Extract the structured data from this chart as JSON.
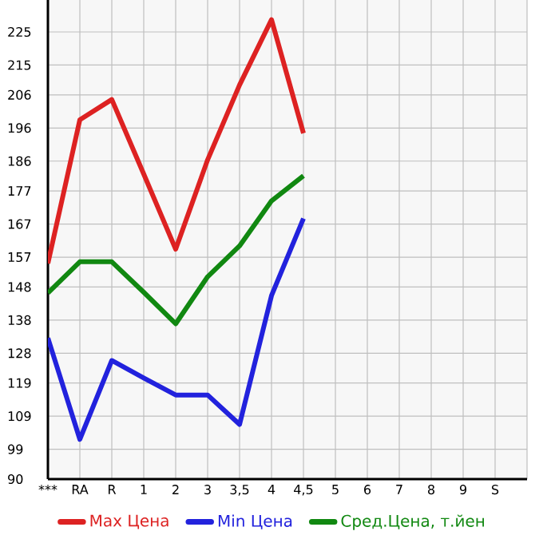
{
  "chart_data": {
    "type": "line",
    "categories": [
      "***",
      "RA",
      "R",
      "1",
      "2",
      "3",
      "3,5",
      "4",
      "4,5",
      "5",
      "6",
      "7",
      "8",
      "9",
      "S",
      null
    ],
    "series": [
      {
        "name": "Max Цена",
        "color": "#dd2222",
        "values": [
          155.1,
          198.5,
          204.6,
          182.1,
          159.4,
          186.4,
          209,
          228.7,
          194.4,
          null,
          null,
          null,
          null,
          null,
          null,
          null
        ]
      },
      {
        "name": "Min Цена",
        "color": "#2222dd",
        "values": [
          132.6,
          102,
          125.8,
          120.5,
          115.4,
          115.4,
          106.5,
          145.4,
          168.7,
          null,
          null,
          null,
          null,
          null,
          null,
          null
        ]
      },
      {
        "name": "Сред.Цена, т.йен",
        "color": "#118811",
        "values": [
          146.2,
          155.6,
          155.6,
          146.4,
          136.9,
          151.1,
          160.4,
          174,
          181.6,
          null,
          null,
          null,
          null,
          null,
          null,
          null
        ]
      }
    ],
    "ylim": [
      90,
      234.64
    ],
    "yticks": [
      90,
      99,
      109,
      119,
      128,
      138,
      148,
      157,
      167,
      177,
      186,
      196,
      206,
      215,
      225
    ],
    "grid": true,
    "legend": "bottom"
  }
}
